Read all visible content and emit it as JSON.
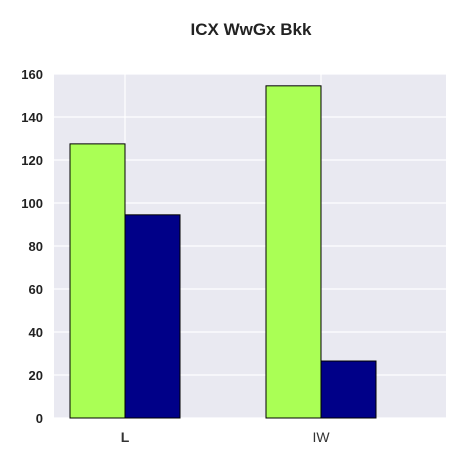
{
  "chart_data": {
    "type": "bar",
    "title": "ICX WwGx  Bkk",
    "categories": [
      "L",
      "IW"
    ],
    "category_weights": [
      "bold",
      "normal"
    ],
    "series": [
      {
        "values": [
          127.5,
          154.5
        ],
        "color": "#aaff55"
      },
      {
        "values": [
          94.5,
          26.5
        ],
        "color": "#000088"
      }
    ],
    "ylim": [
      0,
      160
    ],
    "yticks": [
      0,
      20,
      40,
      60,
      80,
      100,
      120,
      140,
      160
    ],
    "grid": true,
    "legend": "none",
    "plot_background": "#e9e9f1",
    "grid_color": "#ffffff"
  }
}
